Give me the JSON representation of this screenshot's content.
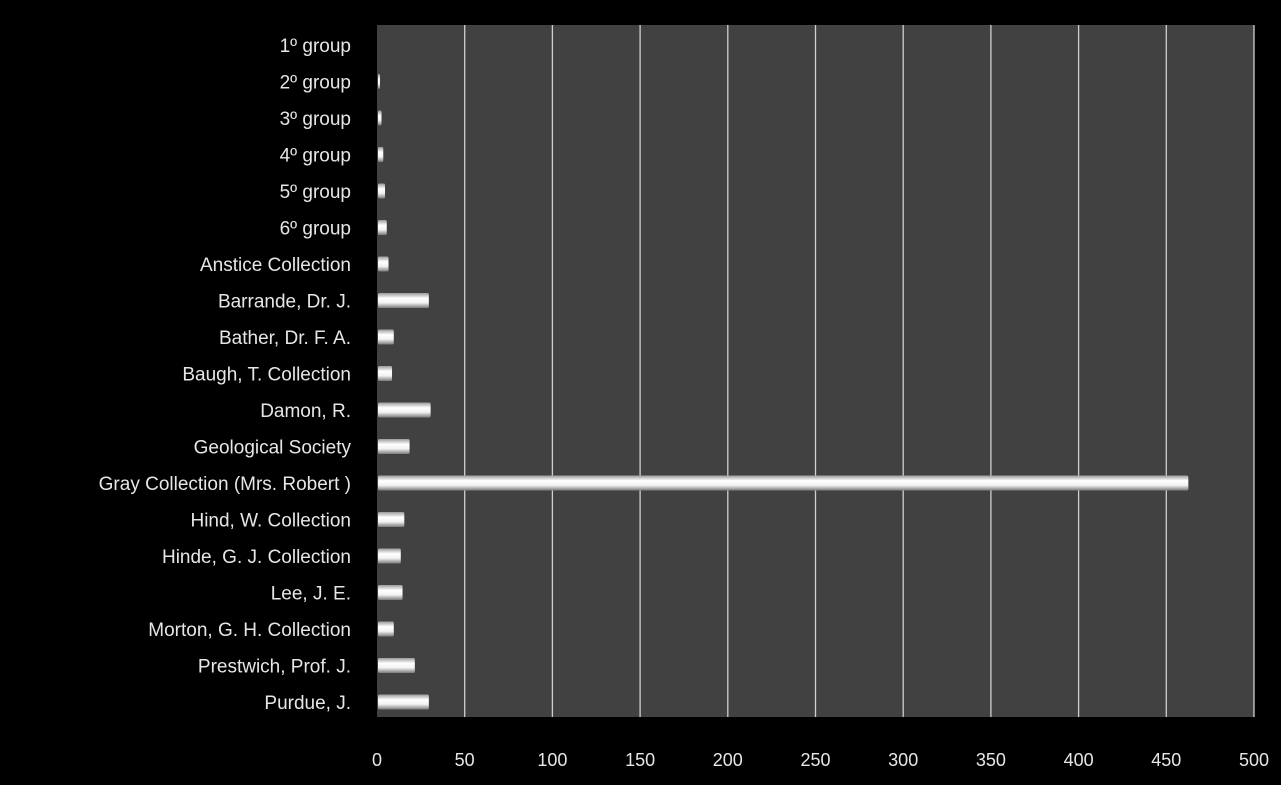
{
  "chart_data": {
    "type": "bar",
    "orientation": "horizontal",
    "categories": [
      "1º group",
      "2º group",
      "3º group",
      "4º group",
      "5º group",
      "6º group",
      "Anstice Collection",
      "Barrande, Dr. J.",
      "Bather, Dr. F. A.",
      "Baugh, T. Collection",
      "Damon, R.",
      "Geological Society",
      "Gray Collection (Mrs. Robert )",
      "Hind, W. Collection",
      "Hinde, G. J. Collection",
      "Lee, J. E.",
      "Morton, G. H. Collection",
      "Prestwich, Prof. J.",
      "Purdue, J."
    ],
    "values": [
      0,
      1,
      2,
      3,
      4,
      5,
      6,
      29,
      9,
      8,
      30,
      18,
      462,
      15,
      13,
      14,
      9,
      21,
      29
    ],
    "xlim": [
      0,
      500
    ],
    "xticks": [
      "0",
      "50",
      "100",
      "150",
      "200",
      "250",
      "300",
      "350",
      "400",
      "450",
      "500"
    ],
    "title": "",
    "xlabel": "",
    "ylabel": "",
    "grid": "vertical",
    "legend": "none",
    "colors": {
      "page_background": "#000000",
      "plot_background": "#414141",
      "gridline": "#cfcfcf",
      "bar_fill_light": "#ffffff",
      "bar_fill_dark": "#8c8c8c",
      "text": "#e6e6e6"
    }
  }
}
